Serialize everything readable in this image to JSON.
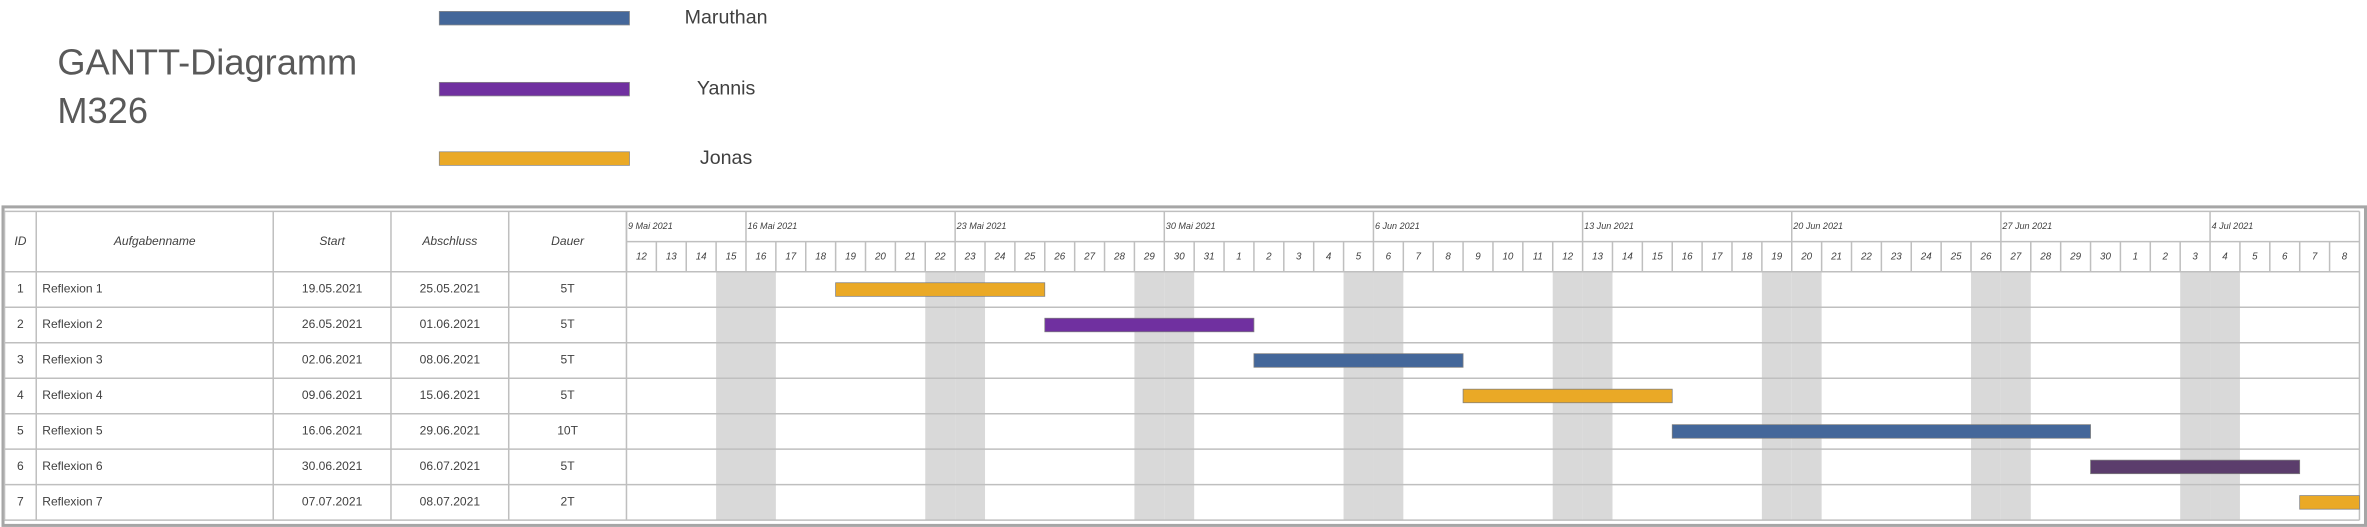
{
  "header": {
    "title_lines": [
      "GANTT-Diagramm",
      "M326"
    ],
    "legend": [
      {
        "name": "Maruthan",
        "color": "#44679a"
      },
      {
        "name": "Yannis",
        "color": "#7030a0"
      },
      {
        "name": "Jonas",
        "color": "#eaa926"
      }
    ]
  },
  "table": {
    "columns": [
      "ID",
      "Aufgabenname",
      "Start",
      "Abschluss",
      "Dauer"
    ],
    "rows": [
      {
        "id": 1,
        "name": "Reflexion 1",
        "start": "19.05.2021",
        "end": "25.05.2021",
        "duration": "5T",
        "color": "#eaa926"
      },
      {
        "id": 2,
        "name": "Reflexion 2",
        "start": "26.05.2021",
        "end": "01.06.2021",
        "duration": "5T",
        "color": "#7030a0"
      },
      {
        "id": 3,
        "name": "Reflexion 3",
        "start": "02.06.2021",
        "end": "08.06.2021",
        "duration": "5T",
        "color": "#44679a"
      },
      {
        "id": 4,
        "name": "Reflexion 4",
        "start": "09.06.2021",
        "end": "15.06.2021",
        "duration": "5T",
        "color": "#eaa926"
      },
      {
        "id": 5,
        "name": "Reflexion 5",
        "start": "16.06.2021",
        "end": "29.06.2021",
        "duration": "10T",
        "color": "#44679a"
      },
      {
        "id": 6,
        "name": "Reflexion 6",
        "start": "30.06.2021",
        "end": "06.07.2021",
        "duration": "5T",
        "color": "#5b3d6c"
      },
      {
        "id": 7,
        "name": "Reflexion 7",
        "start": "07.07.2021",
        "end": "08.07.2021",
        "duration": "2T",
        "color": "#eaa926"
      }
    ],
    "weeks": [
      "9 Mai 2021",
      "16 Mai 2021",
      "23 Mai 2021",
      "30 Mai 2021",
      "6 Jun 2021",
      "13 Jun 2021",
      "20 Jun 2021",
      "27 Jun 2021",
      "4 Jul 2021"
    ],
    "days": [
      12,
      13,
      14,
      15,
      16,
      17,
      18,
      19,
      20,
      21,
      22,
      23,
      24,
      25,
      26,
      27,
      28,
      29,
      30,
      31,
      1,
      2,
      3,
      4,
      5,
      6,
      7,
      8,
      9,
      10,
      11,
      12,
      13,
      14,
      15,
      16,
      17,
      18,
      19,
      20,
      21,
      22,
      23,
      24,
      25,
      26,
      27,
      28,
      29,
      30,
      1,
      2,
      3,
      4,
      5,
      6,
      7,
      8
    ]
  }
}
